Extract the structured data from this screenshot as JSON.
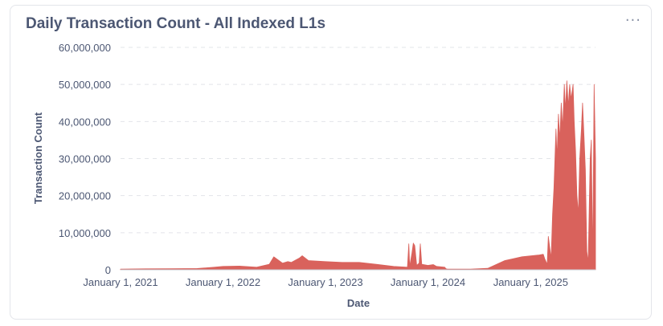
{
  "card": {
    "title": "Daily Transaction Count - All Indexed L1s",
    "more_icon": "ellipsis-icon",
    "more_glyph": "···"
  },
  "chart_data": {
    "type": "area",
    "title": "Daily Transaction Count - All Indexed L1s",
    "xlabel": "Date",
    "ylabel": "Transaction Count",
    "color": "#d9625c",
    "grid": true,
    "ylim": [
      0,
      60000000
    ],
    "yticks": [
      0,
      10000000,
      20000000,
      30000000,
      40000000,
      50000000,
      60000000
    ],
    "ytick_labels": [
      "0",
      "10,000,000",
      "20,000,000",
      "30,000,000",
      "40,000,000",
      "50,000,000",
      "60,000,000"
    ],
    "xlim": [
      "2021-01-01",
      "2025-08-20"
    ],
    "xticks": [
      "2021-01-01",
      "2022-01-01",
      "2023-01-01",
      "2024-01-01",
      "2025-01-01"
    ],
    "xtick_labels": [
      "January 1, 2021",
      "January 1, 2022",
      "January 1, 2023",
      "January 1, 2024",
      "January 1, 2025"
    ],
    "series": [
      {
        "x": [
          "2021-01-01",
          "2021-04-01",
          "2021-07-01",
          "2021-10-01",
          "2021-12-01",
          "2022-01-01",
          "2022-03-01",
          "2022-05-01",
          "2022-06-15",
          "2022-07-01",
          "2022-08-01",
          "2022-08-20",
          "2022-09-01",
          "2022-10-01",
          "2022-10-10",
          "2022-11-01",
          "2023-01-01",
          "2023-03-01",
          "2023-05-01",
          "2023-07-01",
          "2023-09-01",
          "2023-10-20",
          "2023-10-25",
          "2023-10-28",
          "2023-11-05",
          "2023-11-10",
          "2023-11-15",
          "2023-11-22",
          "2023-12-01",
          "2023-12-05",
          "2023-12-10",
          "2024-01-01",
          "2024-01-20",
          "2024-02-01",
          "2024-03-01",
          "2024-03-05",
          "2024-03-10",
          "2024-04-01",
          "2024-06-01",
          "2024-08-01",
          "2024-10-01",
          "2024-12-01",
          "2025-02-01",
          "2025-02-15",
          "2025-02-20",
          "2025-03-01",
          "2025-03-05",
          "2025-03-15",
          "2025-03-20",
          "2025-03-25",
          "2025-04-01",
          "2025-04-05",
          "2025-04-10",
          "2025-04-15",
          "2025-04-20",
          "2025-04-25",
          "2025-05-01",
          "2025-05-05",
          "2025-05-10",
          "2025-05-15",
          "2025-05-20",
          "2025-05-25",
          "2025-06-01",
          "2025-06-05",
          "2025-06-10",
          "2025-06-15",
          "2025-06-20",
          "2025-06-25",
          "2025-07-01",
          "2025-07-05",
          "2025-07-10",
          "2025-07-15",
          "2025-07-20",
          "2025-07-25",
          "2025-08-01",
          "2025-08-05",
          "2025-08-10",
          "2025-08-15",
          "2025-08-20"
        ],
        "y": [
          200000,
          250000,
          300000,
          350000,
          700000,
          900000,
          1000000,
          700000,
          1500000,
          3500000,
          1800000,
          2200000,
          2000000,
          3200000,
          3800000,
          2500000,
          2200000,
          2000000,
          2000000,
          1500000,
          900000,
          700000,
          7000000,
          900000,
          4500000,
          7200000,
          6500000,
          1200000,
          1800000,
          7000000,
          1500000,
          1200000,
          1400000,
          900000,
          700000,
          300000,
          200000,
          200000,
          200000,
          400000,
          2500000,
          3500000,
          4000000,
          4200000,
          3000000,
          1500000,
          9000000,
          3000000,
          15000000,
          22000000,
          38000000,
          30000000,
          42000000,
          35000000,
          45000000,
          38000000,
          50000000,
          43000000,
          51000000,
          44000000,
          50000000,
          46000000,
          50000000,
          40000000,
          32000000,
          20000000,
          15000000,
          30000000,
          38000000,
          45000000,
          36000000,
          27000000,
          5000000,
          2000000,
          30000000,
          35000000,
          2000000,
          50000000,
          30000000
        ]
      }
    ]
  }
}
